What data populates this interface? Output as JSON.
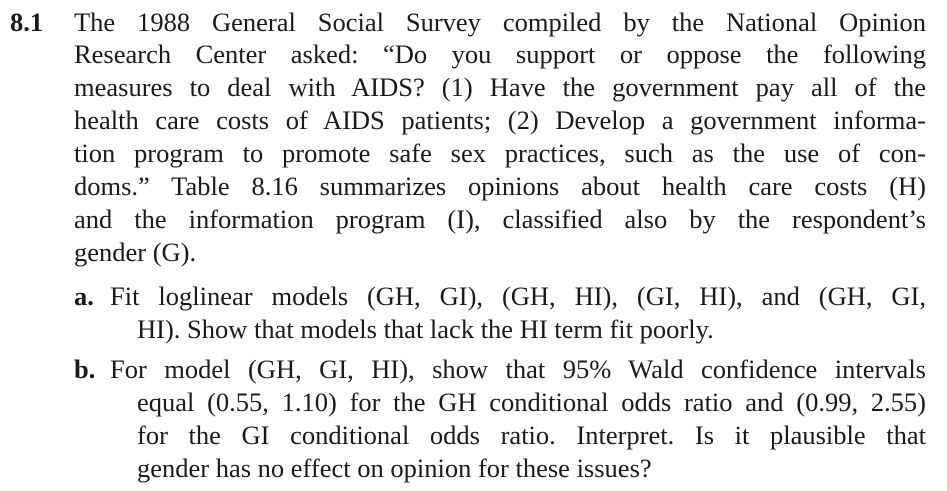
{
  "problem": {
    "number": "8.1",
    "intro_lines": [
      "The 1988 General Social Survey compiled by the National Opinion",
      "Research Center asked: “Do you support or oppose the following",
      "measures to deal with AIDS? (1) Have the government pay all of the",
      "health care costs of AIDS patients; (2) Develop a government informa-",
      "tion program to promote safe sex practices, such as the use of con-",
      "doms.” Table 8.16 summarizes opinions about health care costs (H)",
      "and the information program (I), classified also by the respondent’s",
      "gender (G)."
    ],
    "parts": [
      {
        "label": "a.",
        "lines": [
          "Fit loglinear models (GH, GI), (GH, HI), (GI, HI), and (GH,  GI,",
          "HI). Show that models that lack the HI term fit poorly."
        ]
      },
      {
        "label": "b.",
        "lines": [
          "For model (GH, GI, HI), show that 95% Wald confidence intervals",
          "equal (0.55, 1.10) for the GH conditional odds ratio and (0.99, 2.55)",
          "for the GI conditional odds ratio. Interpret. Is it plausible that",
          "gender has no effect on opinion for these issues?"
        ]
      }
    ]
  }
}
